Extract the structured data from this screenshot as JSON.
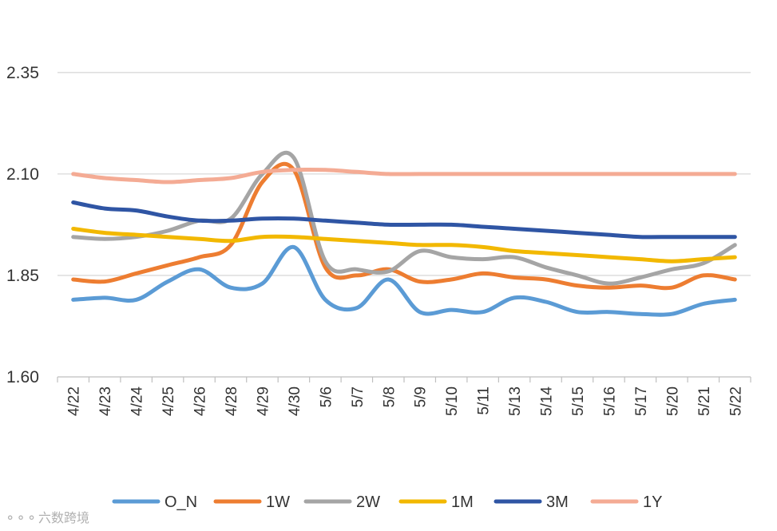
{
  "chart_data": {
    "type": "line",
    "title": "",
    "xlabel": "",
    "ylabel": "",
    "ylim": [
      1.6,
      2.45
    ],
    "yticks": [
      "1.60",
      "1.85",
      "2.10",
      "2.35"
    ],
    "yticks_values": [
      1.6,
      1.85,
      2.1,
      2.35
    ],
    "grid": true,
    "legend_position": "bottom",
    "categories": [
      "4/22",
      "4/23",
      "4/24",
      "4/25",
      "4/26",
      "4/28",
      "4/29",
      "4/30",
      "5/6",
      "5/7",
      "5/8",
      "5/9",
      "5/10",
      "5/11",
      "5/13",
      "5/14",
      "5/15",
      "5/16",
      "5/17",
      "5/20",
      "5/21",
      "5/22"
    ],
    "series": [
      {
        "name": "O_N",
        "color": "#5B9BD5",
        "values": [
          1.79,
          1.795,
          1.79,
          1.835,
          1.865,
          1.82,
          1.83,
          1.92,
          1.79,
          1.77,
          1.84,
          1.76,
          1.765,
          1.76,
          1.795,
          1.785,
          1.76,
          1.76,
          1.755,
          1.755,
          1.78,
          1.79
        ]
      },
      {
        "name": "1W",
        "color": "#ED7D31",
        "values": [
          1.84,
          1.835,
          1.855,
          1.875,
          1.895,
          1.925,
          2.08,
          2.11,
          1.87,
          1.85,
          1.865,
          1.835,
          1.84,
          1.855,
          1.845,
          1.84,
          1.825,
          1.82,
          1.825,
          1.82,
          1.85,
          1.84
        ]
      },
      {
        "name": "2W",
        "color": "#A5A5A5",
        "values": [
          1.945,
          1.94,
          1.945,
          1.96,
          1.985,
          1.99,
          2.1,
          2.14,
          1.885,
          1.865,
          1.86,
          1.91,
          1.895,
          1.89,
          1.895,
          1.87,
          1.85,
          1.83,
          1.845,
          1.865,
          1.88,
          1.925
        ]
      },
      {
        "name": "1M",
        "color": "#F2B800",
        "values": [
          1.965,
          1.955,
          1.95,
          1.945,
          1.94,
          1.935,
          1.945,
          1.945,
          1.94,
          1.935,
          1.93,
          1.925,
          1.925,
          1.92,
          1.91,
          1.905,
          1.9,
          1.895,
          1.89,
          1.885,
          1.89,
          1.895
        ]
      },
      {
        "name": "3M",
        "color": "#2F55A4",
        "values": [
          2.03,
          2.015,
          2.01,
          1.995,
          1.985,
          1.985,
          1.99,
          1.99,
          1.985,
          1.98,
          1.975,
          1.975,
          1.975,
          1.97,
          1.965,
          1.96,
          1.955,
          1.95,
          1.945,
          1.945,
          1.945,
          1.945
        ]
      },
      {
        "name": "1Y",
        "color": "#F4AB94",
        "values": [
          2.1,
          2.09,
          2.085,
          2.08,
          2.085,
          2.09,
          2.105,
          2.11,
          2.11,
          2.105,
          2.1,
          2.1,
          2.1,
          2.1,
          2.1,
          2.1,
          2.1,
          2.1,
          2.1,
          2.1,
          2.1,
          2.1
        ]
      }
    ]
  },
  "watermark": {
    "label": "六数跨境",
    "glyph": "⚬⚬⚬"
  }
}
